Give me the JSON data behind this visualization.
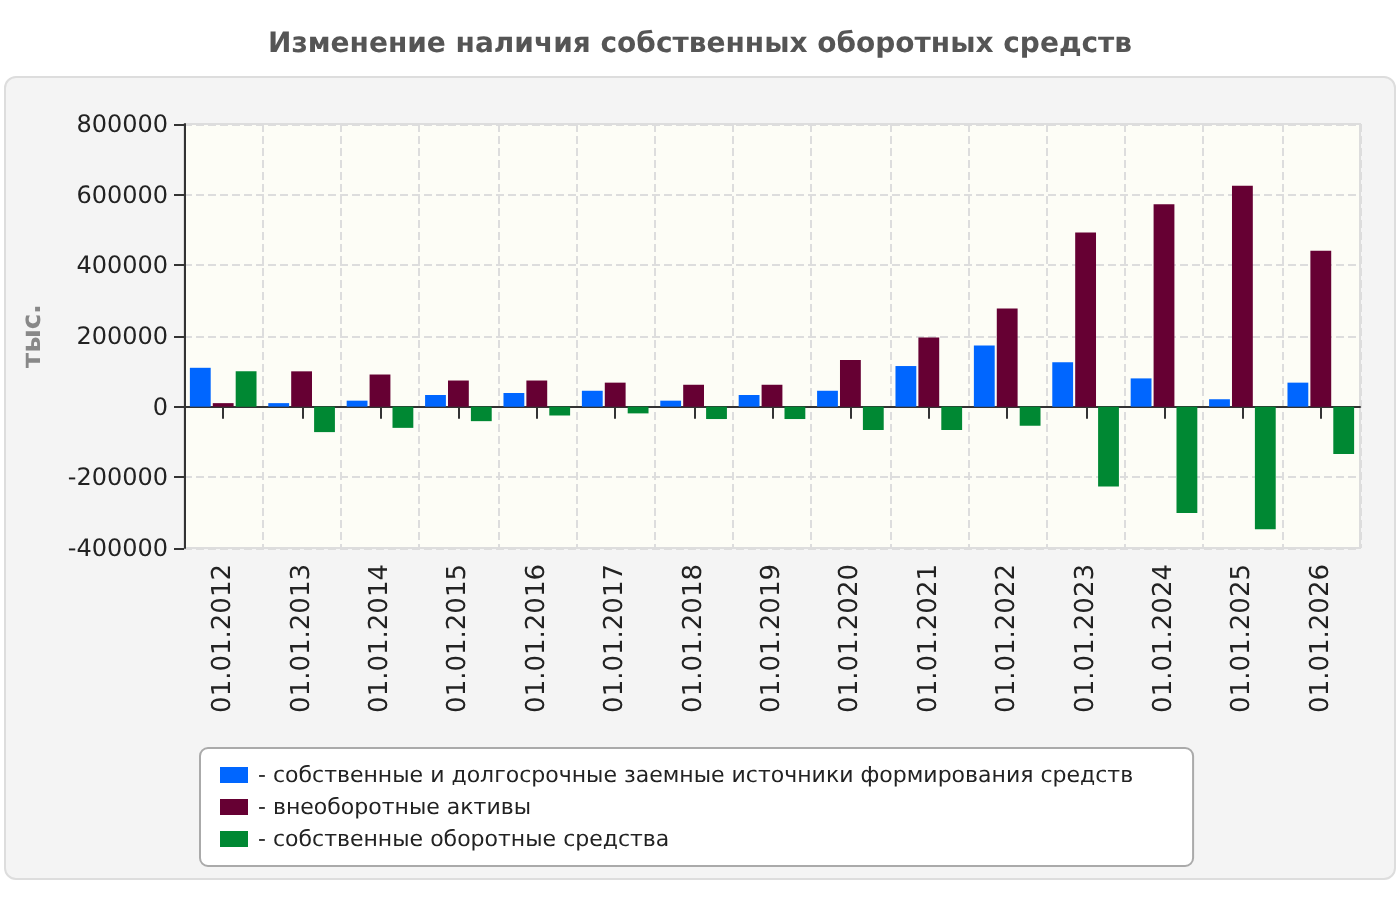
{
  "chart_data": {
    "type": "bar",
    "title": "Изменение наличия собственных оборотных средств",
    "ylabel": "тыс.",
    "categories": [
      "01.01.2012",
      "01.01.2013",
      "01.01.2014",
      "01.01.2015",
      "01.01.2016",
      "01.01.2017",
      "01.01.2018",
      "01.01.2019",
      "01.01.2020",
      "01.01.2021",
      "01.01.2022",
      "01.01.2023",
      "01.01.2024",
      "01.01.2025",
      "01.01.2026"
    ],
    "series": [
      {
        "name": "- собственные и долгосрочные заемные источники формирования средств",
        "color": "#0066ff",
        "values": [
          110000,
          10000,
          17000,
          33000,
          39000,
          45000,
          17000,
          33000,
          45000,
          115000,
          173000,
          126000,
          80000,
          21000,
          68000
        ]
      },
      {
        "name": "- внеоборотные активы",
        "color": "#660033",
        "values": [
          10000,
          100000,
          91000,
          74000,
          74000,
          68000,
          62000,
          62000,
          132000,
          196000,
          278000,
          493000,
          573000,
          625000,
          441000
        ]
      },
      {
        "name": "- собственные оборотные средства",
        "color": "#008833",
        "values": [
          100000,
          -72000,
          -60000,
          -41000,
          -25000,
          -19000,
          -35000,
          -35000,
          -66000,
          -66000,
          -54000,
          -226000,
          -301000,
          -347000,
          -134000
        ]
      }
    ],
    "ylim": [
      -400000,
      800000
    ],
    "yticks": [
      -400000,
      -200000,
      0,
      200000,
      400000,
      600000,
      800000
    ],
    "grid": true,
    "legend": "bottom"
  }
}
